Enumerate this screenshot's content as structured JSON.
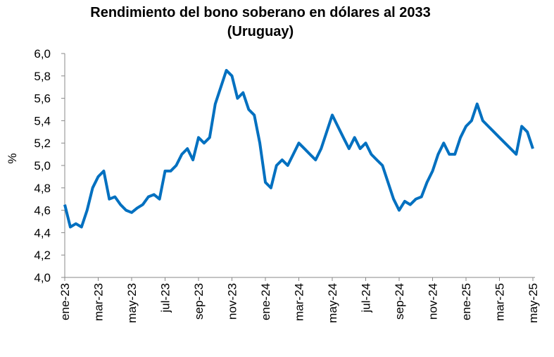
{
  "chart_data": {
    "type": "line",
    "title": "Rendimiento del bono soberano en dólares al 2033",
    "subtitle": "(Uruguay)",
    "y_label": "%",
    "categories": [
      "ene-23",
      null,
      null,
      null,
      null,
      null,
      "mar-23",
      null,
      null,
      null,
      null,
      null,
      "may-23",
      null,
      null,
      null,
      null,
      null,
      "jul-23",
      null,
      null,
      null,
      null,
      null,
      "sep-23",
      null,
      null,
      null,
      null,
      null,
      "nov-23",
      null,
      null,
      null,
      null,
      null,
      "ene-24",
      null,
      null,
      null,
      null,
      null,
      "mar-24",
      null,
      null,
      null,
      null,
      null,
      "may-24",
      null,
      null,
      null,
      null,
      null,
      "jul-24",
      null,
      null,
      null,
      null,
      null,
      "sep-24",
      null,
      null,
      null,
      null,
      null,
      "nov-24",
      null,
      null,
      null,
      null,
      null,
      "ene-25",
      null,
      null,
      null,
      null,
      null,
      "mar-25",
      null,
      null,
      null,
      null,
      null,
      "may-25"
    ],
    "values": [
      4.65,
      4.45,
      4.48,
      4.45,
      4.6,
      4.8,
      4.9,
      4.95,
      4.7,
      4.72,
      4.65,
      4.6,
      4.58,
      4.62,
      4.65,
      4.72,
      4.74,
      4.7,
      4.95,
      4.95,
      5.0,
      5.1,
      5.15,
      5.05,
      5.25,
      5.2,
      5.25,
      5.55,
      5.7,
      5.85,
      5.8,
      5.6,
      5.65,
      5.5,
      5.45,
      5.2,
      4.85,
      4.8,
      5.0,
      5.05,
      5.0,
      5.1,
      5.2,
      5.15,
      5.1,
      5.05,
      5.15,
      5.3,
      5.45,
      5.35,
      5.25,
      5.15,
      5.25,
      5.15,
      5.2,
      5.1,
      5.05,
      5.0,
      4.85,
      4.7,
      4.6,
      4.68,
      4.65,
      4.7,
      4.72,
      4.85,
      4.95,
      5.1,
      5.2,
      5.1,
      5.1,
      5.25,
      5.35,
      5.4,
      5.55,
      5.4,
      5.35,
      5.3,
      5.25,
      5.2,
      5.15,
      5.1,
      5.35,
      5.3,
      5.15
    ],
    "color": "#0070c0",
    "ylim": [
      4.0,
      6.0
    ],
    "yticks": [
      {
        "value": 4.0,
        "label": "4,0"
      },
      {
        "value": 4.2,
        "label": "4,2"
      },
      {
        "value": 4.4,
        "label": "4,4"
      },
      {
        "value": 4.6,
        "label": "4,6"
      },
      {
        "value": 4.8,
        "label": "4,8"
      },
      {
        "value": 5.0,
        "label": "5,0"
      },
      {
        "value": 5.2,
        "label": "5,2"
      },
      {
        "value": 5.4,
        "label": "5,4"
      },
      {
        "value": 5.6,
        "label": "5,6"
      },
      {
        "value": 5.8,
        "label": "5,8"
      },
      {
        "value": 6.0,
        "label": "6,0"
      }
    ],
    "grid": false
  }
}
